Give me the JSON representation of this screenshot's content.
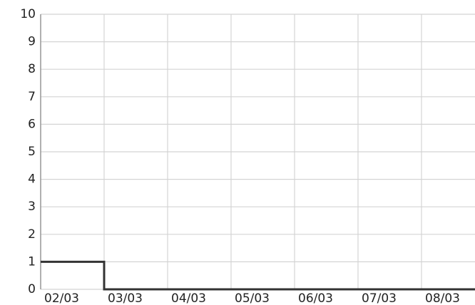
{
  "chart_data": {
    "type": "line",
    "categories": [
      "02/03",
      "03/03",
      "04/03",
      "05/03",
      "06/03",
      "07/03",
      "08/03"
    ],
    "series": [
      {
        "color": "#333333",
        "values": [
          1,
          0,
          0,
          0,
          0,
          0,
          0
        ]
      }
    ],
    "ylim": [
      0,
      10
    ],
    "yticks": [
      0,
      1,
      2,
      3,
      4,
      5,
      6,
      7,
      8,
      9,
      10
    ],
    "grid": true
  }
}
